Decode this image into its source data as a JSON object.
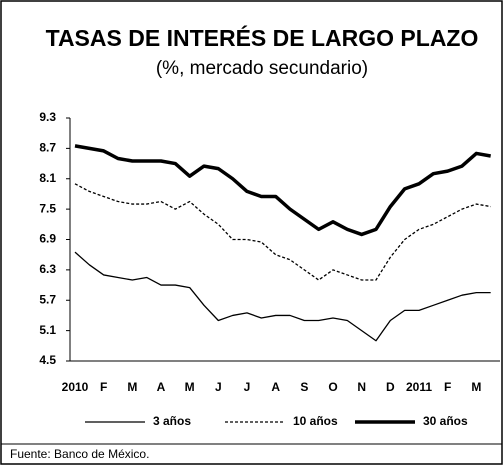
{
  "chart_data": {
    "type": "line",
    "title": "TASAS DE INTERÉS  DE LARGO PLAZO",
    "subtitle": "(%, mercado secundario)",
    "categories": [
      "2010",
      null,
      "F",
      null,
      "M",
      null,
      "A",
      null,
      "M",
      null,
      "J",
      null,
      "J",
      null,
      "A",
      null,
      "S",
      null,
      "O",
      null,
      "N",
      null,
      "D",
      null,
      "2011",
      null,
      "F",
      null,
      "M",
      null
    ],
    "series": [
      {
        "name": "3 años",
        "color": "#000000",
        "line_style": "solid",
        "line_width": 1.3,
        "values": [
          6.65,
          6.4,
          6.2,
          6.15,
          6.1,
          6.15,
          6.0,
          6.0,
          5.95,
          5.6,
          5.3,
          5.4,
          5.45,
          5.35,
          5.4,
          5.4,
          5.3,
          5.3,
          5.35,
          5.3,
          5.1,
          4.9,
          5.3,
          5.5,
          5.5,
          5.6,
          5.7,
          5.8,
          5.85,
          5.85
        ]
      },
      {
        "name": "10 años",
        "color": "#000000",
        "line_style": "dashed",
        "line_width": 1.3,
        "values": [
          8.0,
          7.85,
          7.75,
          7.65,
          7.6,
          7.6,
          7.65,
          7.5,
          7.65,
          7.4,
          7.2,
          6.9,
          6.9,
          6.85,
          6.6,
          6.5,
          6.3,
          6.1,
          6.3,
          6.2,
          6.1,
          6.1,
          6.55,
          6.9,
          7.1,
          7.2,
          7.35,
          7.5,
          7.6,
          7.55
        ]
      },
      {
        "name": "30 años",
        "color": "#000000",
        "line_style": "solid",
        "line_width": 3.5,
        "values": [
          8.75,
          8.7,
          8.65,
          8.5,
          8.45,
          8.45,
          8.45,
          8.4,
          8.15,
          8.35,
          8.3,
          8.1,
          7.85,
          7.75,
          7.75,
          7.5,
          7.3,
          7.1,
          7.25,
          7.1,
          7.0,
          7.1,
          7.55,
          7.9,
          8.0,
          8.2,
          8.25,
          8.35,
          8.6,
          8.55
        ]
      }
    ],
    "ylim": [
      4.5,
      9.3
    ],
    "yticks": [
      4.5,
      5.1,
      5.7,
      6.3,
      6.9,
      7.5,
      8.1,
      8.7,
      9.3
    ],
    "legend": "bottom",
    "source": "Fuente: Banco de México."
  }
}
